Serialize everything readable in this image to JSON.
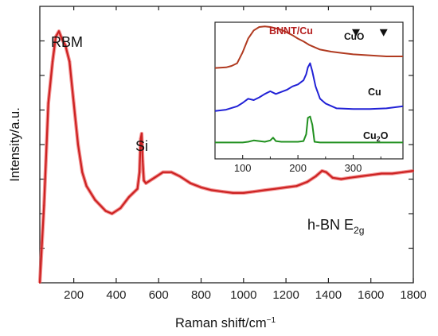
{
  "chart_data": [
    {
      "type": "line",
      "panel": "main",
      "xlabel_parts": [
        "Raman shift/cm",
        "−1"
      ],
      "ylabel": "Intensity/a.u.",
      "xlim": [
        40,
        1800
      ],
      "ylim": [
        0,
        100
      ],
      "x_ticks": [
        200,
        400,
        600,
        800,
        1000,
        1200,
        1400,
        1600,
        1800
      ],
      "y_ticks_labeled": false,
      "grid": false,
      "annotations": [
        {
          "id": "rbm",
          "text": "RBM",
          "x": 135,
          "y": 86
        },
        {
          "id": "si",
          "text": "Si",
          "x": 520,
          "y": 53
        },
        {
          "id": "hbn",
          "text": "h-BN E",
          "sub": "2g",
          "x": 1310,
          "y": 20
        }
      ],
      "series": [
        {
          "color": "#cc2222",
          "x": [
            40,
            60,
            80,
            100,
            115,
            130,
            145,
            160,
            180,
            200,
            220,
            240,
            260,
            300,
            350,
            380,
            420,
            460,
            500,
            510,
            515,
            520,
            525,
            530,
            540,
            580,
            620,
            660,
            700,
            750,
            800,
            850,
            900,
            950,
            1000,
            1050,
            1100,
            1150,
            1200,
            1250,
            1300,
            1340,
            1370,
            1390,
            1420,
            1460,
            1500,
            1550,
            1600,
            1650,
            1700,
            1750,
            1800
          ],
          "y": [
            0,
            28,
            65,
            80,
            89,
            91,
            88,
            86,
            80,
            65,
            50,
            40,
            35,
            30,
            26,
            25,
            27,
            31,
            34,
            40,
            52,
            54,
            44,
            37,
            36,
            38,
            40,
            40,
            38.5,
            36,
            34.5,
            33.5,
            33,
            32.5,
            32.5,
            33,
            33.5,
            34,
            34.5,
            35,
            36.5,
            38.5,
            40.5,
            40,
            38,
            37.5,
            38,
            38.5,
            39,
            39.5,
            39.5,
            40,
            40.5
          ]
        }
      ]
    },
    {
      "type": "line",
      "panel": "inset",
      "xlim": [
        50,
        390
      ],
      "ylim": [
        0,
        100
      ],
      "x_ticks": [
        100,
        200,
        300
      ],
      "y_ticks_labeled": false,
      "markers": [
        {
          "shape": "down-triangle",
          "color": "#111111",
          "x": 305,
          "y": 92
        },
        {
          "shape": "down-triangle",
          "color": "#111111",
          "x": 355,
          "y": 92
        }
      ],
      "series": [
        {
          "name": "BNNT/Cu",
          "label_color": "#b52020",
          "color": "#b03a20",
          "x": [
            50,
            70,
            80,
            90,
            100,
            110,
            120,
            130,
            140,
            150,
            160,
            170,
            180,
            190,
            200,
            210,
            220,
            240,
            260,
            280,
            300,
            320,
            340,
            360,
            380,
            390
          ],
          "y": [
            66.5,
            67,
            68,
            70,
            78,
            88,
            94,
            96.5,
            97,
            96.5,
            95.5,
            94.5,
            92.5,
            90.5,
            88,
            86,
            83.5,
            80,
            78.5,
            77.5,
            76.5,
            76,
            75.5,
            75,
            75,
            75
          ]
        },
        {
          "name": "Cu",
          "label_color": "#111111",
          "color": "#2121d6",
          "x": [
            50,
            70,
            90,
            100,
            110,
            120,
            130,
            140,
            150,
            160,
            170,
            180,
            190,
            200,
            210,
            215,
            218,
            222,
            226,
            232,
            240,
            250,
            270,
            300,
            330,
            360,
            390
          ],
          "y": [
            35,
            36,
            38.5,
            41,
            44,
            43,
            45,
            47.5,
            49.5,
            47.5,
            49,
            50.5,
            53,
            54.5,
            57.5,
            62,
            67,
            70,
            64,
            53,
            44,
            40.5,
            37,
            36.5,
            36.5,
            37,
            38.5
          ]
        },
        {
          "name_main": "Cu",
          "name_sub": "2",
          "name_tail": "O",
          "label_color": "#111111",
          "color": "#20901f",
          "x": [
            50,
            80,
            100,
            110,
            120,
            140,
            150,
            155,
            160,
            170,
            200,
            210,
            215,
            218,
            222,
            226,
            230,
            240,
            260,
            300,
            340,
            390
          ],
          "y": [
            12,
            12,
            12,
            12.5,
            13.5,
            12.5,
            13.5,
            15.5,
            13,
            12.5,
            12.5,
            13,
            18,
            30,
            31,
            25,
            12.5,
            12,
            12,
            12,
            12,
            12
          ]
        }
      ]
    }
  ]
}
